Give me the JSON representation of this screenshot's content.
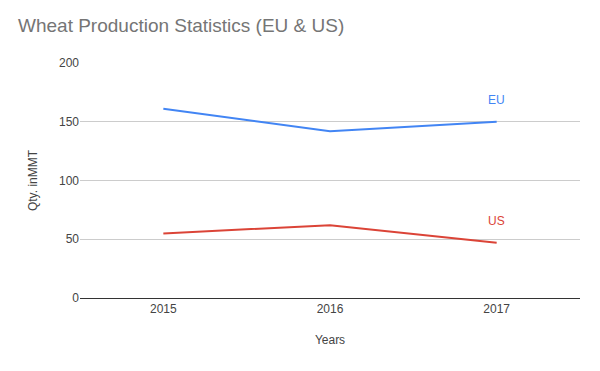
{
  "chart_data": {
    "type": "line",
    "title": "Wheat Production Statistics (EU & US)",
    "x_label": "Years",
    "y_label": "Qty. inMMT",
    "categories": [
      "2015",
      "2016",
      "2017"
    ],
    "series": [
      {
        "name": "EU",
        "color": "#4285f4",
        "values": [
          161,
          142,
          150
        ]
      },
      {
        "name": "US",
        "color": "#db4437",
        "values": [
          55,
          62,
          47
        ]
      }
    ],
    "ylim": [
      0,
      200
    ],
    "yticks": [
      0,
      50,
      100,
      150,
      200
    ],
    "grid": true
  }
}
